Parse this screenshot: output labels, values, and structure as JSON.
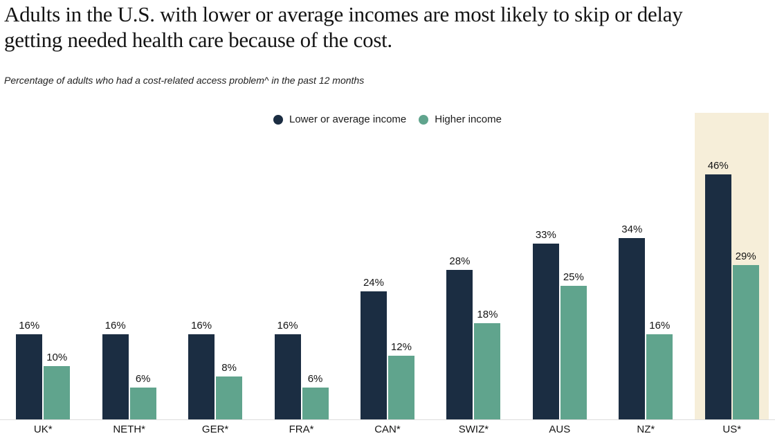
{
  "header": {
    "title_line1": "Adults in the U.S. with lower or average incomes are most likely to skip or delay",
    "title_line2": "getting needed health care because of the cost.",
    "subtitle": "Percentage of adults who had a cost-related access problem^ in the past 12 months"
  },
  "chart_data": {
    "type": "bar",
    "title": "Adults in the U.S. with lower or average incomes are most likely to skip or delay getting needed health care because of the cost.",
    "subtitle": "Percentage of adults who had a cost-related access problem^ in the past 12 months",
    "categories": [
      "UK*",
      "NETH*",
      "GER*",
      "FRA*",
      "CAN*",
      "SWIZ*",
      "AUS",
      "NZ*",
      "US*"
    ],
    "series": [
      {
        "name": "Lower or average income",
        "color": "#1b2d42",
        "values": [
          16,
          16,
          16,
          16,
          24,
          28,
          33,
          34,
          46
        ]
      },
      {
        "name": "Higher income",
        "color": "#60a48d",
        "values": [
          10,
          6,
          8,
          6,
          12,
          18,
          25,
          16,
          29
        ]
      }
    ],
    "unit": "%",
    "data_labels": true,
    "grid": false,
    "legend_position": "top-center",
    "ylim": [
      0,
      50
    ],
    "highlight_category": "US*",
    "highlight_color": "#f6eed9",
    "axis_line_color": "#dcdcdc"
  }
}
